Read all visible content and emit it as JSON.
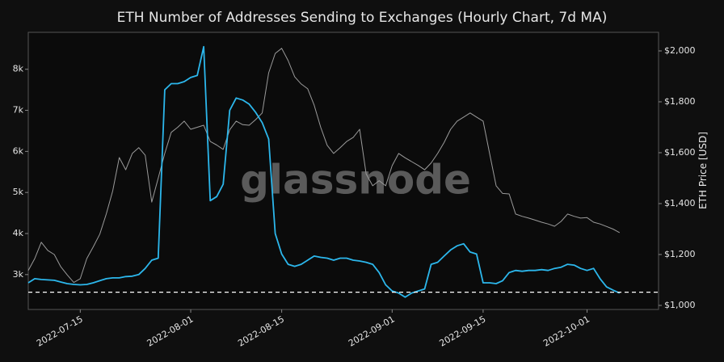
{
  "chart_data": {
    "type": "line",
    "title": "ETH Number of Addresses Sending to Exchanges (Hourly Chart, 7d MA)",
    "y2_label": "ETH Price [USD]",
    "watermark": "glassnode",
    "x": [
      "2022-07-07",
      "2022-07-08",
      "2022-07-09",
      "2022-07-10",
      "2022-07-11",
      "2022-07-12",
      "2022-07-13",
      "2022-07-14",
      "2022-07-15",
      "2022-07-16",
      "2022-07-17",
      "2022-07-18",
      "2022-07-19",
      "2022-07-20",
      "2022-07-21",
      "2022-07-22",
      "2022-07-23",
      "2022-07-24",
      "2022-07-25",
      "2022-07-26",
      "2022-07-27",
      "2022-07-28",
      "2022-07-29",
      "2022-07-30",
      "2022-07-31",
      "2022-08-01",
      "2022-08-02",
      "2022-08-03",
      "2022-08-04",
      "2022-08-05",
      "2022-08-06",
      "2022-08-07",
      "2022-08-08",
      "2022-08-09",
      "2022-08-10",
      "2022-08-11",
      "2022-08-12",
      "2022-08-13",
      "2022-08-14",
      "2022-08-15",
      "2022-08-16",
      "2022-08-17",
      "2022-08-18",
      "2022-08-19",
      "2022-08-20",
      "2022-08-21",
      "2022-08-22",
      "2022-08-23",
      "2022-08-24",
      "2022-08-25",
      "2022-08-26",
      "2022-08-27",
      "2022-08-28",
      "2022-08-29",
      "2022-08-30",
      "2022-08-31",
      "2022-09-01",
      "2022-09-02",
      "2022-09-03",
      "2022-09-04",
      "2022-09-05",
      "2022-09-06",
      "2022-09-07",
      "2022-09-08",
      "2022-09-09",
      "2022-09-10",
      "2022-09-11",
      "2022-09-12",
      "2022-09-13",
      "2022-09-14",
      "2022-09-15",
      "2022-09-16",
      "2022-09-17",
      "2022-09-18",
      "2022-09-19",
      "2022-09-20",
      "2022-09-21",
      "2022-09-22",
      "2022-09-23",
      "2022-09-24",
      "2022-09-25",
      "2022-09-26",
      "2022-09-27",
      "2022-09-28",
      "2022-09-29",
      "2022-09-30",
      "2022-10-01",
      "2022-10-02",
      "2022-10-03",
      "2022-10-04",
      "2022-10-05",
      "2022-10-06"
    ],
    "series": [
      {
        "color": "#2cb7ec",
        "axis": "y",
        "values": [
          2800,
          2900,
          2880,
          2870,
          2860,
          2820,
          2780,
          2760,
          2750,
          2760,
          2800,
          2850,
          2900,
          2920,
          2920,
          2950,
          2960,
          3000,
          3150,
          3350,
          3400,
          7500,
          7650,
          7650,
          7700,
          7800,
          7850,
          8550,
          4800,
          4900,
          5200,
          7000,
          7300,
          7250,
          7150,
          6950,
          6700,
          6300,
          4000,
          3500,
          3250,
          3200,
          3250,
          3350,
          3450,
          3420,
          3400,
          3350,
          3400,
          3400,
          3350,
          3330,
          3300,
          3250,
          3050,
          2750,
          2600,
          2550,
          2450,
          2550,
          2600,
          2650,
          3250,
          3300,
          3450,
          3600,
          3700,
          3750,
          3550,
          3500,
          2800,
          2800,
          2780,
          2850,
          3050,
          3100,
          3080,
          3100,
          3100,
          3120,
          3100,
          3150,
          3180,
          3250,
          3230,
          3150,
          3100,
          3150,
          2900,
          2700,
          2620,
          2550
        ]
      },
      {
        "color": "#9b9b9b",
        "axis": "y2",
        "values": [
          1137,
          1184,
          1248,
          1216,
          1200,
          1152,
          1120,
          1090,
          1105,
          1184,
          1230,
          1280,
          1359,
          1450,
          1581,
          1533,
          1597,
          1620,
          1590,
          1406,
          1500,
          1597,
          1680,
          1700,
          1724,
          1692,
          1700,
          1708,
          1644,
          1630,
          1613,
          1690,
          1724,
          1710,
          1708,
          1730,
          1756,
          1914,
          1990,
          2010,
          1962,
          1898,
          1870,
          1851,
          1787,
          1700,
          1629,
          1597,
          1620,
          1644,
          1660,
          1692,
          1517,
          1470,
          1490,
          1470,
          1549,
          1597,
          1580,
          1565,
          1550,
          1533,
          1560,
          1597,
          1640,
          1692,
          1724,
          1740,
          1756,
          1740,
          1724,
          1597,
          1470,
          1440,
          1438,
          1359,
          1350,
          1343,
          1335,
          1327,
          1320,
          1311,
          1330,
          1359,
          1350,
          1343,
          1345,
          1327,
          1320,
          1310,
          1300,
          1286
        ]
      }
    ],
    "xlim": [
      "2022-07-07",
      "2022-10-12"
    ],
    "xticks": [
      "2022-07-15",
      "2022-08-01",
      "2022-08-15",
      "2022-09-01",
      "2022-09-15",
      "2022-10-01"
    ],
    "ylim": [
      2150,
      8900
    ],
    "yticks": [
      {
        "value": 3000,
        "label": "3k"
      },
      {
        "value": 4000,
        "label": "4k"
      },
      {
        "value": 5000,
        "label": "5k"
      },
      {
        "value": 6000,
        "label": "6k"
      },
      {
        "value": 7000,
        "label": "7k"
      },
      {
        "value": 8000,
        "label": "8k"
      }
    ],
    "y2lim": [
      984,
      2073
    ],
    "y2ticks": [
      {
        "value": 1000,
        "label": "$1,000"
      },
      {
        "value": 1200,
        "label": "$1,200"
      },
      {
        "value": 1400,
        "label": "$1,400"
      },
      {
        "value": 1600,
        "label": "$1,600"
      },
      {
        "value": 1800,
        "label": "$1,800"
      },
      {
        "value": 2000,
        "label": "$2,000"
      }
    ],
    "reference_line": 2570,
    "grid": false
  }
}
